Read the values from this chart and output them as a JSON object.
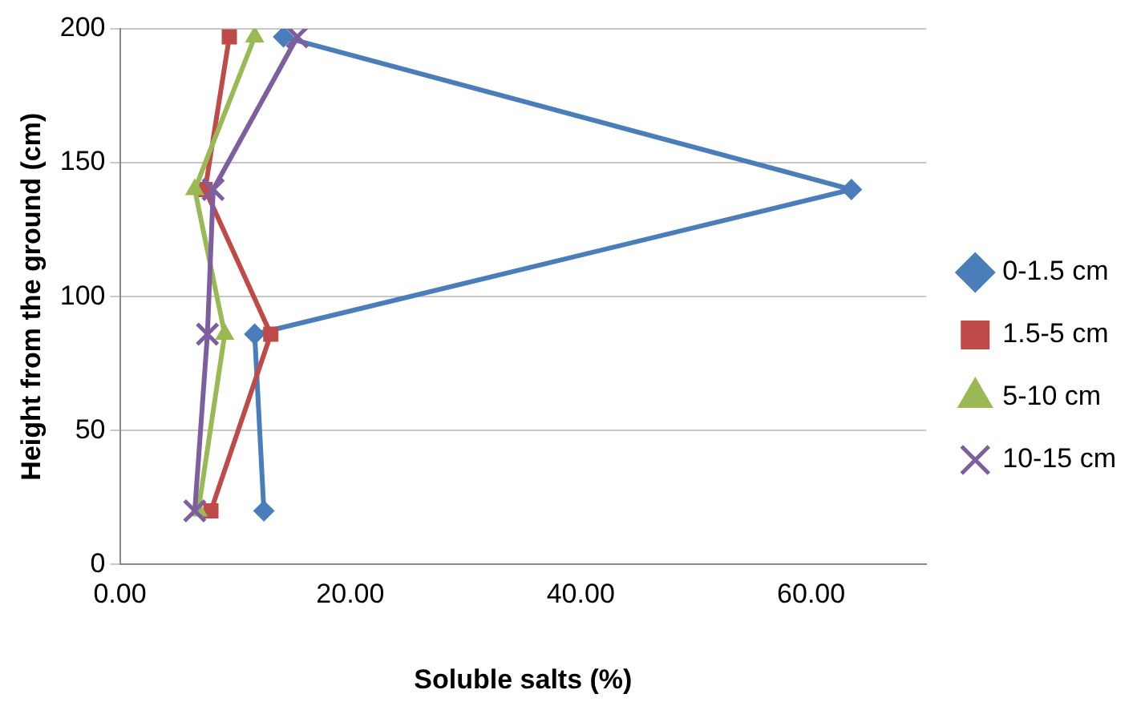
{
  "chart_data": {
    "type": "line",
    "xlabel": "Soluble salts (%)",
    "ylabel": "Height from the ground (cm)",
    "xlim": [
      0,
      70
    ],
    "xticks": [
      {
        "value": 0,
        "label": "0.00"
      },
      {
        "value": 20,
        "label": "20.00"
      },
      {
        "value": 40,
        "label": "40.00"
      },
      {
        "value": 60,
        "label": "60.00"
      }
    ],
    "ylim": [
      0,
      200
    ],
    "yticks": [
      0,
      50,
      100,
      150,
      200
    ],
    "grid": "y",
    "legend": "right",
    "series": [
      {
        "name": "0-1.5 cm",
        "color": "#4a7ebb",
        "marker": "diamond",
        "x": [
          12.5,
          11.7,
          63.5,
          14.2
        ],
        "values": [
          20,
          86,
          140,
          197
        ]
      },
      {
        "name": "1.5-5 cm",
        "color": "#be4b48",
        "marker": "square",
        "x": [
          7.9,
          13.1,
          7.4,
          9.5
        ],
        "values": [
          20,
          86,
          140,
          197
        ]
      },
      {
        "name": "5-10 cm",
        "color": "#98b954",
        "marker": "triangle",
        "x": [
          6.8,
          9.1,
          6.5,
          11.7
        ],
        "values": [
          20,
          86,
          140,
          197
        ]
      },
      {
        "name": "10-15 cm",
        "color": "#7d5fa0",
        "marker": "cross",
        "x": [
          6.5,
          7.6,
          8.1,
          15.4
        ],
        "values": [
          20,
          86,
          140,
          197
        ]
      }
    ]
  }
}
